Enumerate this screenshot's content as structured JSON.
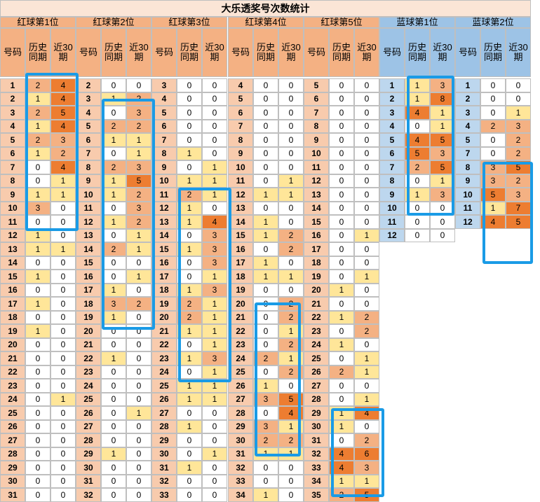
{
  "title": "大乐透奖号次数统计",
  "headers": {
    "number": "号码",
    "history": "历史同期",
    "recent": "近30期"
  },
  "colors": {
    "title_bg": "#fbe5d6",
    "red_header": "#f4b183",
    "blue_header": "#9dc3e6",
    "red_num_bg": "#f8cbad",
    "blue_num_bg": "#bdd7ee",
    "grid": "#bfbfbf",
    "highlight_border": "#1a9be6",
    "heat_low": "#ffe699",
    "heat_mid": "#f4b183",
    "heat_high": "#ed7d31"
  },
  "chart_data": {
    "type": "table",
    "groups": [
      {
        "name": "红球第1位",
        "color": "red",
        "rows": [
          [
            1,
            2,
            4
          ],
          [
            2,
            1,
            4
          ],
          [
            3,
            2,
            5
          ],
          [
            4,
            1,
            4
          ],
          [
            5,
            2,
            3
          ],
          [
            6,
            1,
            2
          ],
          [
            7,
            0,
            4
          ],
          [
            8,
            0,
            1
          ],
          [
            9,
            1,
            1
          ],
          [
            10,
            3,
            0
          ],
          [
            11,
            0,
            0
          ],
          [
            12,
            1,
            0
          ],
          [
            13,
            1,
            1
          ],
          [
            14,
            0,
            0
          ],
          [
            15,
            1,
            0
          ],
          [
            16,
            0,
            0
          ],
          [
            17,
            1,
            0
          ],
          [
            18,
            0,
            0
          ],
          [
            19,
            1,
            0
          ],
          [
            20,
            0,
            0
          ],
          [
            21,
            0,
            0
          ],
          [
            22,
            0,
            0
          ],
          [
            23,
            0,
            0
          ],
          [
            24,
            0,
            1
          ],
          [
            25,
            0,
            0
          ],
          [
            26,
            0,
            0
          ],
          [
            27,
            0,
            0
          ],
          [
            28,
            0,
            0
          ],
          [
            29,
            0,
            0
          ],
          [
            30,
            0,
            0
          ],
          [
            31,
            0,
            0
          ]
        ]
      },
      {
        "name": "红球第2位",
        "color": "red",
        "rows": [
          [
            2,
            0,
            0
          ],
          [
            3,
            1,
            2
          ],
          [
            4,
            0,
            3
          ],
          [
            5,
            2,
            2
          ],
          [
            6,
            1,
            1
          ],
          [
            7,
            0,
            1
          ],
          [
            8,
            2,
            3
          ],
          [
            9,
            1,
            5
          ],
          [
            10,
            1,
            2
          ],
          [
            11,
            0,
            3
          ],
          [
            12,
            1,
            2
          ],
          [
            13,
            0,
            1
          ],
          [
            14,
            2,
            1
          ],
          [
            15,
            0,
            0
          ],
          [
            16,
            0,
            1
          ],
          [
            17,
            1,
            0
          ],
          [
            18,
            3,
            2
          ],
          [
            19,
            1,
            0
          ],
          [
            20,
            0,
            0
          ],
          [
            21,
            0,
            0
          ],
          [
            22,
            1,
            0
          ],
          [
            23,
            0,
            0
          ],
          [
            24,
            0,
            0
          ],
          [
            25,
            0,
            0
          ],
          [
            26,
            0,
            1
          ],
          [
            27,
            0,
            0
          ],
          [
            28,
            0,
            0
          ],
          [
            29,
            1,
            0
          ],
          [
            30,
            0,
            0
          ],
          [
            31,
            0,
            0
          ],
          [
            32,
            0,
            0
          ]
        ]
      },
      {
        "name": "红球第3位",
        "color": "red",
        "rows": [
          [
            3,
            0,
            0
          ],
          [
            4,
            0,
            0
          ],
          [
            5,
            0,
            0
          ],
          [
            6,
            0,
            0
          ],
          [
            7,
            0,
            0
          ],
          [
            8,
            1,
            0
          ],
          [
            9,
            0,
            1
          ],
          [
            10,
            1,
            1
          ],
          [
            11,
            2,
            1
          ],
          [
            12,
            1,
            0
          ],
          [
            13,
            1,
            4
          ],
          [
            14,
            0,
            3
          ],
          [
            15,
            1,
            3
          ],
          [
            16,
            0,
            3
          ],
          [
            17,
            0,
            1
          ],
          [
            18,
            1,
            3
          ],
          [
            19,
            2,
            1
          ],
          [
            20,
            2,
            1
          ],
          [
            21,
            1,
            1
          ],
          [
            22,
            0,
            1
          ],
          [
            23,
            1,
            3
          ],
          [
            24,
            0,
            1
          ],
          [
            25,
            1,
            1
          ],
          [
            26,
            1,
            1
          ],
          [
            27,
            0,
            0
          ],
          [
            28,
            1,
            0
          ],
          [
            29,
            0,
            0
          ],
          [
            30,
            0,
            1
          ],
          [
            31,
            1,
            0
          ],
          [
            32,
            0,
            0
          ],
          [
            33,
            0,
            0
          ]
        ]
      },
      {
        "name": "红球第4位",
        "color": "red",
        "rows": [
          [
            4,
            0,
            0
          ],
          [
            5,
            0,
            0
          ],
          [
            6,
            0,
            0
          ],
          [
            7,
            0,
            0
          ],
          [
            8,
            0,
            0
          ],
          [
            9,
            0,
            0
          ],
          [
            10,
            0,
            0
          ],
          [
            11,
            0,
            1
          ],
          [
            12,
            1,
            1
          ],
          [
            13,
            0,
            0
          ],
          [
            14,
            1,
            0
          ],
          [
            15,
            1,
            2
          ],
          [
            16,
            0,
            2
          ],
          [
            17,
            1,
            0
          ],
          [
            18,
            1,
            1
          ],
          [
            19,
            0,
            0
          ],
          [
            20,
            0,
            2
          ],
          [
            21,
            0,
            2
          ],
          [
            22,
            0,
            1
          ],
          [
            23,
            0,
            2
          ],
          [
            24,
            2,
            1
          ],
          [
            25,
            0,
            2
          ],
          [
            26,
            1,
            0
          ],
          [
            27,
            3,
            5
          ],
          [
            28,
            0,
            4
          ],
          [
            29,
            3,
            1
          ],
          [
            30,
            2,
            2
          ],
          [
            31,
            1,
            1
          ],
          [
            32,
            0,
            0
          ],
          [
            33,
            0,
            0
          ],
          [
            34,
            1,
            0
          ]
        ]
      },
      {
        "name": "红球第5位",
        "color": "red",
        "rows": [
          [
            5,
            0,
            0
          ],
          [
            6,
            0,
            0
          ],
          [
            7,
            0,
            0
          ],
          [
            8,
            0,
            0
          ],
          [
            9,
            0,
            0
          ],
          [
            10,
            0,
            0
          ],
          [
            11,
            0,
            0
          ],
          [
            12,
            0,
            0
          ],
          [
            13,
            0,
            0
          ],
          [
            14,
            0,
            0
          ],
          [
            15,
            0,
            0
          ],
          [
            16,
            0,
            1
          ],
          [
            17,
            0,
            0
          ],
          [
            18,
            0,
            0
          ],
          [
            19,
            0,
            1
          ],
          [
            20,
            1,
            0
          ],
          [
            21,
            0,
            0
          ],
          [
            22,
            1,
            2
          ],
          [
            23,
            0,
            2
          ],
          [
            24,
            1,
            0
          ],
          [
            25,
            0,
            1
          ],
          [
            26,
            2,
            1
          ],
          [
            27,
            0,
            0
          ],
          [
            28,
            0,
            1
          ],
          [
            29,
            1,
            4
          ],
          [
            30,
            1,
            0
          ],
          [
            31,
            0,
            2
          ],
          [
            32,
            4,
            6
          ],
          [
            33,
            4,
            3
          ],
          [
            34,
            1,
            1
          ],
          [
            35,
            2,
            5
          ]
        ]
      },
      {
        "name": "蓝球第1位",
        "color": "blue",
        "rows": [
          [
            1,
            1,
            3
          ],
          [
            2,
            1,
            8
          ],
          [
            3,
            4,
            1
          ],
          [
            4,
            0,
            1
          ],
          [
            5,
            4,
            5
          ],
          [
            6,
            5,
            3
          ],
          [
            7,
            2,
            5
          ],
          [
            8,
            0,
            1
          ],
          [
            9,
            1,
            3
          ],
          [
            10,
            0,
            0
          ],
          [
            11,
            0,
            0
          ],
          [
            12,
            0,
            0
          ]
        ]
      },
      {
        "name": "蓝球第2位",
        "color": "blue",
        "rows": [
          [
            1,
            0,
            0
          ],
          [
            2,
            0,
            0
          ],
          [
            3,
            0,
            1
          ],
          [
            4,
            2,
            3
          ],
          [
            5,
            0,
            2
          ],
          [
            7,
            0,
            2
          ],
          [
            8,
            3,
            5
          ],
          [
            9,
            3,
            2
          ],
          [
            10,
            5,
            3
          ],
          [
            11,
            1,
            7
          ],
          [
            12,
            4,
            5
          ]
        ]
      }
    ]
  }
}
